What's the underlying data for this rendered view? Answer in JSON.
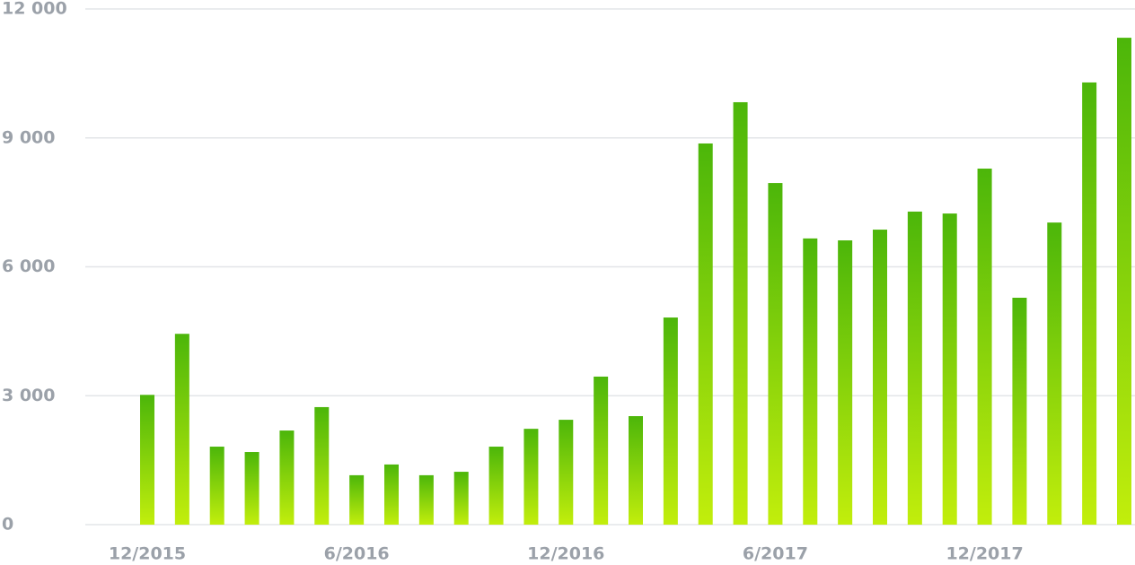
{
  "chart_data": {
    "type": "bar",
    "categories": [
      "12/2015",
      null,
      null,
      null,
      null,
      null,
      "6/2016",
      null,
      null,
      null,
      null,
      null,
      "12/2016",
      null,
      null,
      null,
      null,
      null,
      "6/2017",
      null,
      null,
      null,
      null,
      null,
      "12/2017",
      null,
      null,
      null,
      null
    ],
    "values": [
      3020,
      4440,
      1815,
      1690,
      2190,
      2735,
      1150,
      1400,
      1150,
      1230,
      1815,
      2230,
      2440,
      3445,
      2525,
      4820,
      8870,
      9830,
      7950,
      6660,
      6615,
      6865,
      7285,
      7240,
      8285,
      5280,
      7030,
      10290,
      11330
    ],
    "gradient": {
      "top": "#4cb60a",
      "bottom": "#c2ee0c"
    },
    "ylim": [
      0,
      12000
    ],
    "yticks": [
      0,
      {
        "value": 3000,
        "label": "3 000"
      },
      {
        "value": 6000,
        "label": "6 000"
      },
      {
        "value": 9000,
        "label": "9 000"
      },
      {
        "value": 12000,
        "label": "12 000"
      }
    ],
    "grid": true
  }
}
